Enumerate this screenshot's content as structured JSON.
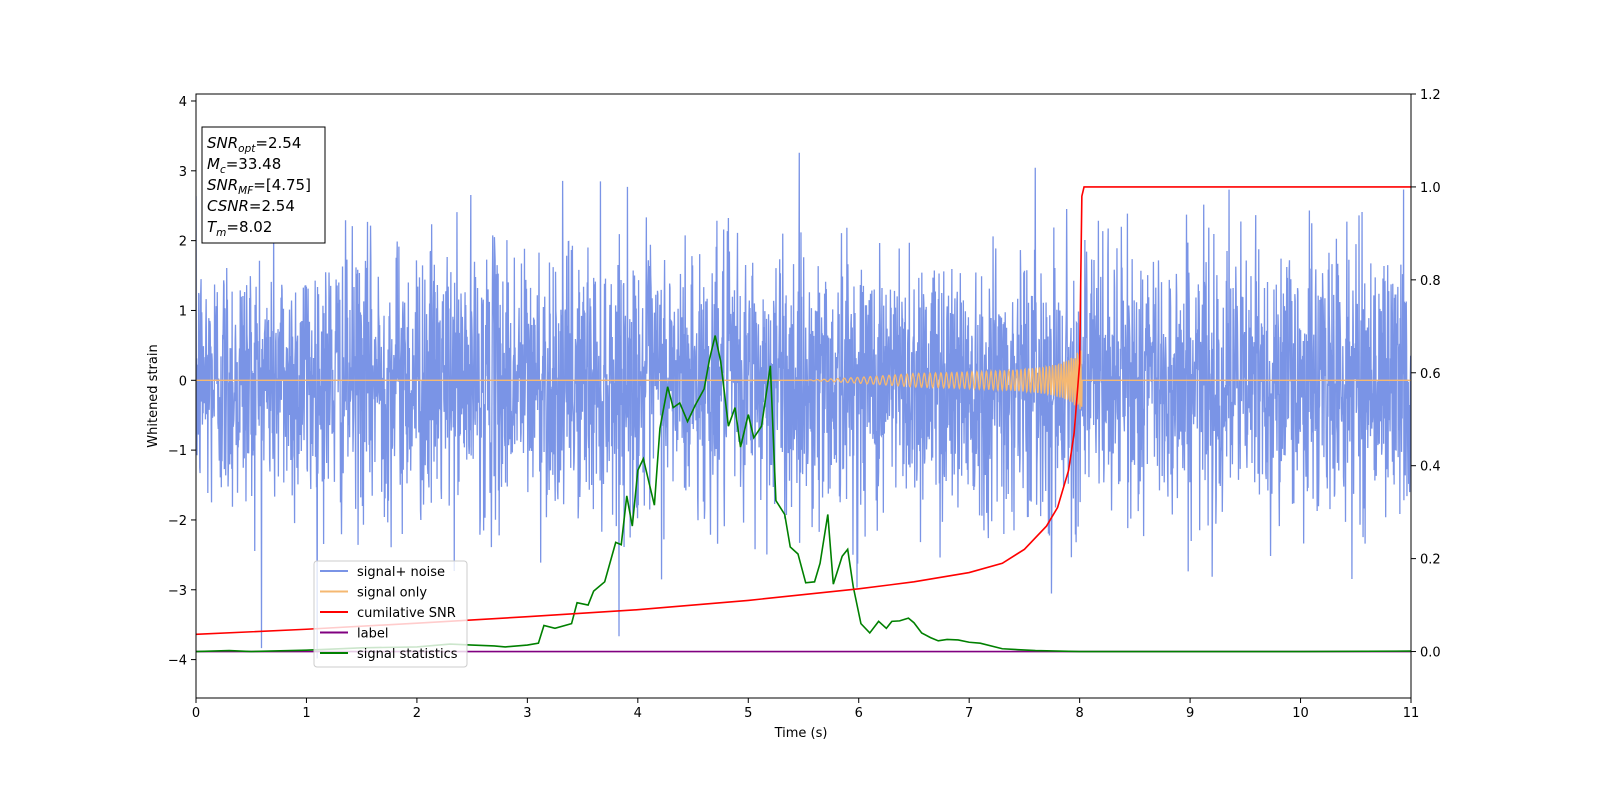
{
  "chart_data": {
    "type": "line",
    "xlabel": "Time (s)",
    "ylabel": "Whitened strain",
    "y2label": "",
    "xlim": [
      0,
      11
    ],
    "ylim": [
      -4.55,
      4.1
    ],
    "y2lim": [
      -0.1,
      1.2
    ],
    "xticks": [
      0,
      1,
      2,
      3,
      4,
      5,
      6,
      7,
      8,
      9,
      10,
      11
    ],
    "yticks": [
      -4,
      -3,
      -2,
      -1,
      0,
      1,
      2,
      3,
      4
    ],
    "y2ticks": [
      0.0,
      0.2,
      0.4,
      0.6,
      0.8,
      1.0,
      1.2
    ],
    "legend_position": "lower-left",
    "info_box": [
      {
        "sym": "SNR",
        "sub": "opt",
        "rest": "=2.54"
      },
      {
        "sym": "M",
        "sub": "c",
        "rest": "=33.48"
      },
      {
        "sym": "SNR",
        "sub": "MF",
        "rest": "=[4.75]"
      },
      {
        "sym": "CSNR",
        "sub": "",
        "rest": "=2.54"
      },
      {
        "sym": "T",
        "sub": "m",
        "rest": "=8.02"
      }
    ],
    "series": [
      {
        "name": "signal+ noise",
        "axis": "left",
        "color": "#7a94e6",
        "description": "dense random whitened-strain noise, std ~1.0 spanning roughly -4.2 to 3.7 over 0-11 s"
      },
      {
        "name": "signal only",
        "axis": "left",
        "color": "#f5b872",
        "merger_time": 8.02,
        "peak_amplitude": 0.55,
        "description": "chirp near zero, amplitude growing until merger at ~8.02 s, then zero"
      },
      {
        "name": "cumilative SNR",
        "axis": "right",
        "color": "#ff0000",
        "x": [
          0,
          1,
          2,
          3,
          4,
          5,
          6,
          6.5,
          7,
          7.3,
          7.5,
          7.7,
          7.8,
          7.9,
          7.95,
          8.0,
          8.02,
          8.04,
          11
        ],
        "y": [
          0.037,
          0.048,
          0.061,
          0.075,
          0.09,
          0.11,
          0.135,
          0.15,
          0.17,
          0.19,
          0.22,
          0.27,
          0.31,
          0.39,
          0.47,
          0.62,
          0.98,
          1.0,
          1.0
        ]
      },
      {
        "name": "label",
        "axis": "right",
        "color": "#800080",
        "x": [
          0,
          11
        ],
        "y": [
          0.0,
          0.0
        ]
      },
      {
        "name": "signal statistics",
        "axis": "right",
        "color": "#008000",
        "x": [
          0,
          0.3,
          0.5,
          1.0,
          1.5,
          2.0,
          2.3,
          2.5,
          2.7,
          2.8,
          3.0,
          3.1,
          3.15,
          3.25,
          3.4,
          3.45,
          3.55,
          3.6,
          3.7,
          3.8,
          3.85,
          3.9,
          3.95,
          4.0,
          4.05,
          4.15,
          4.2,
          4.27,
          4.32,
          4.38,
          4.45,
          4.52,
          4.6,
          4.65,
          4.7,
          4.75,
          4.82,
          4.88,
          4.93,
          5.0,
          5.05,
          5.12,
          5.2,
          5.25,
          5.33,
          5.38,
          5.45,
          5.52,
          5.6,
          5.65,
          5.72,
          5.77,
          5.85,
          5.9,
          5.95,
          6.02,
          6.1,
          6.18,
          6.25,
          6.3,
          6.37,
          6.45,
          6.5,
          6.57,
          6.65,
          6.72,
          6.8,
          6.9,
          7.0,
          7.1,
          7.3,
          7.6,
          8.0,
          8.5,
          9.0,
          10.0,
          11.0
        ],
        "y": [
          0.0,
          0.002,
          0.0,
          0.003,
          0.008,
          0.01,
          0.016,
          0.014,
          0.012,
          0.01,
          0.014,
          0.018,
          0.056,
          0.05,
          0.06,
          0.105,
          0.1,
          0.13,
          0.15,
          0.235,
          0.23,
          0.335,
          0.27,
          0.39,
          0.415,
          0.315,
          0.48,
          0.57,
          0.525,
          0.535,
          0.495,
          0.53,
          0.565,
          0.63,
          0.68,
          0.625,
          0.485,
          0.525,
          0.44,
          0.51,
          0.46,
          0.485,
          0.615,
          0.325,
          0.295,
          0.225,
          0.21,
          0.148,
          0.15,
          0.19,
          0.295,
          0.145,
          0.205,
          0.22,
          0.14,
          0.06,
          0.04,
          0.065,
          0.05,
          0.065,
          0.066,
          0.072,
          0.062,
          0.04,
          0.03,
          0.023,
          0.026,
          0.025,
          0.02,
          0.018,
          0.006,
          0.002,
          0.0,
          0.0,
          0.0,
          0.0,
          0.001
        ]
      }
    ]
  }
}
